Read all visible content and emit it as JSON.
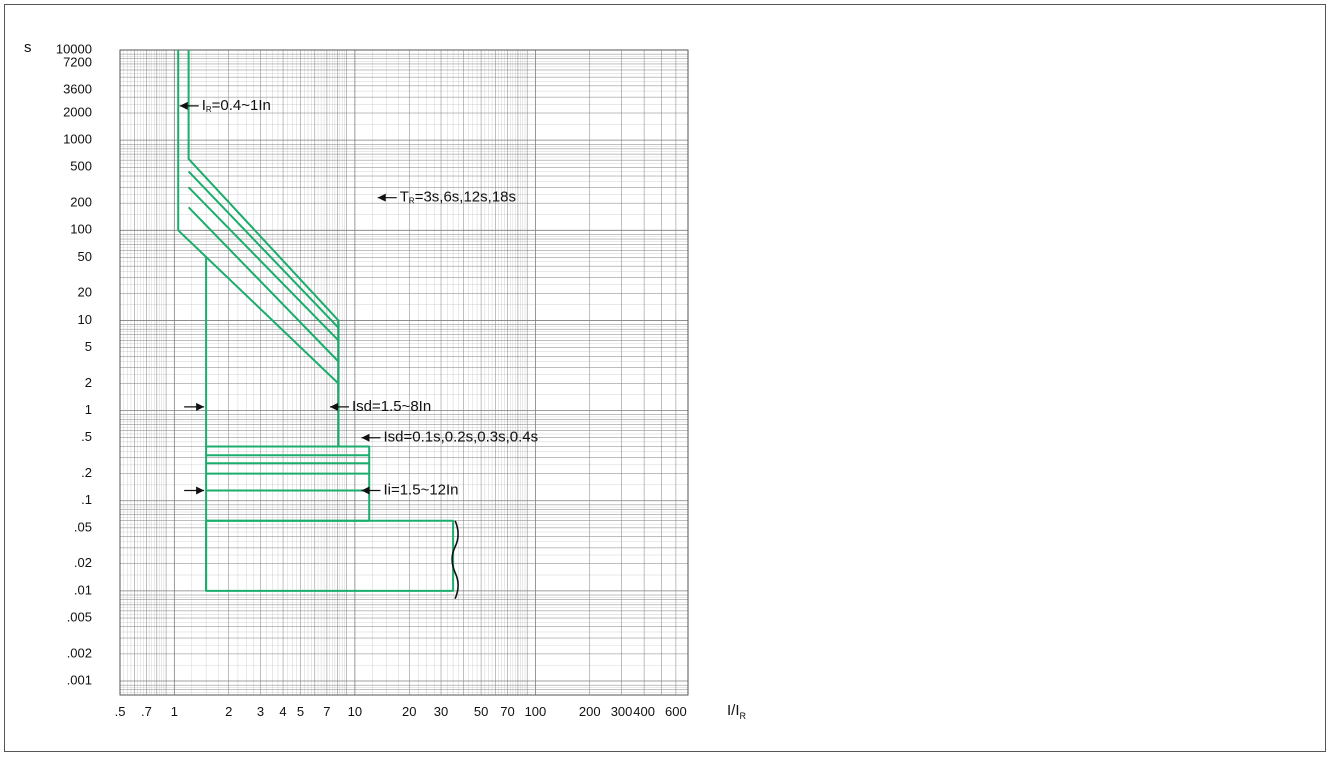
{
  "chart_data": {
    "type": "line",
    "title": "",
    "xlabel": "I/I",
    "xlabel_sub": "R",
    "ylabel": "s",
    "xscale": "log",
    "yscale": "log",
    "xlim": [
      0.5,
      700
    ],
    "ylim": [
      0.0007,
      10000
    ],
    "grid": true,
    "curve_color": "#1aad6b",
    "grid_color": "#7f7f7f",
    "x_ticks": [
      {
        "value": 0.5,
        "label": ".5"
      },
      {
        "value": 0.7,
        "label": ".7"
      },
      {
        "value": 1,
        "label": "1"
      },
      {
        "value": 2,
        "label": "2"
      },
      {
        "value": 3,
        "label": "3"
      },
      {
        "value": 4,
        "label": "4"
      },
      {
        "value": 5,
        "label": "5"
      },
      {
        "value": 7,
        "label": "7"
      },
      {
        "value": 10,
        "label": "10"
      },
      {
        "value": 20,
        "label": "20"
      },
      {
        "value": 30,
        "label": "30"
      },
      {
        "value": 50,
        "label": "50"
      },
      {
        "value": 70,
        "label": "70"
      },
      {
        "value": 100,
        "label": "100"
      },
      {
        "value": 200,
        "label": "200"
      },
      {
        "value": 300,
        "label": "300"
      },
      {
        "value": 400,
        "label": "400"
      },
      {
        "value": 600,
        "label": "600"
      }
    ],
    "y_ticks": [
      {
        "value": 10000,
        "label": "10000"
      },
      {
        "value": 7200,
        "label": "7200"
      },
      {
        "value": 3600,
        "label": "3600"
      },
      {
        "value": 2000,
        "label": "2000"
      },
      {
        "value": 1000,
        "label": "1000"
      },
      {
        "value": 500,
        "label": "500"
      },
      {
        "value": 200,
        "label": "200"
      },
      {
        "value": 100,
        "label": "100"
      },
      {
        "value": 50,
        "label": "50"
      },
      {
        "value": 20,
        "label": "20"
      },
      {
        "value": 10,
        "label": "10"
      },
      {
        "value": 5,
        "label": "5"
      },
      {
        "value": 2,
        "label": "2"
      },
      {
        "value": 1,
        "label": "1"
      },
      {
        "value": 0.5,
        "label": ".5"
      },
      {
        "value": 0.2,
        "label": ".2"
      },
      {
        "value": 0.1,
        "label": ".1"
      },
      {
        "value": 0.05,
        "label": ".05"
      },
      {
        "value": 0.02,
        "label": ".02"
      },
      {
        "value": 0.01,
        "label": ".01"
      },
      {
        "value": 0.005,
        "label": ".005"
      },
      {
        "value": 0.002,
        "label": ".002"
      },
      {
        "value": 0.001,
        "label": ".001"
      }
    ],
    "curves": [
      {
        "id": "ir-max",
        "points": [
          [
            1.2,
            10000
          ],
          [
            1.2,
            620
          ],
          [
            8.1,
            10
          ],
          [
            8.1,
            1.5
          ]
        ]
      },
      {
        "id": "ir-min",
        "points": [
          [
            1.05,
            10000
          ],
          [
            1.05,
            620
          ]
        ]
      },
      {
        "id": "tr-18s",
        "points": [
          [
            1.2,
            450
          ],
          [
            8.1,
            8.3
          ]
        ]
      },
      {
        "id": "tr-12s",
        "points": [
          [
            1.2,
            300
          ],
          [
            8.1,
            6
          ]
        ]
      },
      {
        "id": "tr-6s",
        "points": [
          [
            1.2,
            180
          ],
          [
            8.1,
            3.5
          ]
        ]
      },
      {
        "id": "tr-3s",
        "points": [
          [
            1.05,
            100
          ],
          [
            1.05,
            620
          ]
        ]
      },
      {
        "id": "tr-3s-slope",
        "points": [
          [
            1.05,
            100
          ],
          [
            8.1,
            2
          ]
        ]
      },
      {
        "id": "isd-min-vertical",
        "points": [
          [
            1.5,
            50
          ],
          [
            1.5,
            0.01
          ]
        ]
      },
      {
        "id": "isd-max-vertical",
        "points": [
          [
            8.1,
            1.5
          ],
          [
            8.1,
            0.4
          ]
        ]
      },
      {
        "id": "isd-box",
        "points": [
          [
            1.5,
            0.4
          ],
          [
            12,
            0.4
          ],
          [
            12,
            0.06
          ],
          [
            1.5,
            0.06
          ]
        ]
      },
      {
        "id": "isd-t-0.3",
        "points": [
          [
            1.5,
            0.32
          ],
          [
            12,
            0.32
          ]
        ]
      },
      {
        "id": "isd-t-0.2",
        "points": [
          [
            1.5,
            0.26
          ],
          [
            12,
            0.26
          ]
        ]
      },
      {
        "id": "isd-t-0.15",
        "points": [
          [
            1.5,
            0.2
          ],
          [
            12,
            0.2
          ]
        ]
      },
      {
        "id": "ii-level",
        "points": [
          [
            1.5,
            0.13
          ],
          [
            12,
            0.13
          ]
        ]
      },
      {
        "id": "inst-box",
        "points": [
          [
            1.5,
            0.06
          ],
          [
            35,
            0.06
          ],
          [
            35,
            0.01
          ],
          [
            1.5,
            0.01
          ],
          [
            1.5,
            0.06
          ]
        ]
      }
    ],
    "annotations": [
      {
        "id": "ir",
        "text": "I",
        "sub": "R",
        "suffix": "=0.4~1In",
        "x": 1.28,
        "y": 2400
      },
      {
        "id": "tr",
        "text": "T",
        "sub": "R",
        "suffix": "=3s,6s,12s,18s",
        "x": 16,
        "y": 230
      },
      {
        "id": "isd",
        "text": "Isd=1.5~8In",
        "x": 8.7,
        "y": 1.1
      },
      {
        "id": "isd-t",
        "text": "Isd=0.1s,0.2s,0.3s,0.4s",
        "x": 13,
        "y": 0.5
      },
      {
        "id": "ii",
        "text": "Ii=1.5~12In",
        "x": 13,
        "y": 0.13
      }
    ]
  }
}
